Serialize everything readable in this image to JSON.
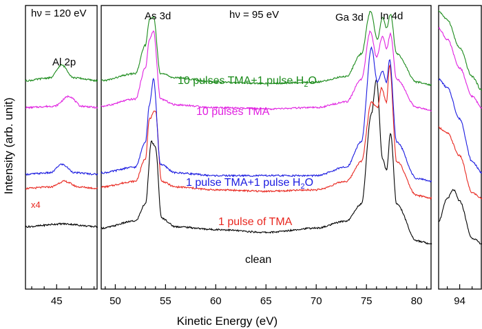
{
  "chart_data": {
    "type": "line",
    "xlabel": "Kinetic Energy (eV)",
    "ylabel": "Intensity (arb. unit)",
    "panels": [
      {
        "name": "left",
        "xlim": [
          42.5,
          48.3
        ],
        "ticks": [
          45
        ],
        "photon_energy": "hν = 120 eV"
      },
      {
        "name": "center",
        "xlim": [
          48.6,
          81.5
        ],
        "ticks": [
          50,
          55,
          60,
          65,
          70,
          75,
          80
        ],
        "photon_energy": "hν = 95 eV"
      },
      {
        "name": "right",
        "xlim": [
          92.3,
          95.8
        ],
        "ticks": [
          94
        ]
      }
    ],
    "peak_labels": [
      "Al 2p",
      "As 3d",
      "Ga 3d",
      "In 4d"
    ],
    "scale_note": "x4",
    "series": [
      {
        "name": "clean",
        "label": "clean",
        "color": "#000000",
        "left": {
          "x": [
            42.5,
            45.5,
            48.3
          ],
          "y": [
            0.22,
            0.23,
            0.22
          ]
        },
        "center": {
          "x": [
            48.6,
            52,
            53,
            53.6,
            54,
            54.6,
            56,
            60,
            65,
            70,
            73,
            74.5,
            75.5,
            76,
            76.6,
            77,
            77.4,
            78,
            80,
            81.5
          ],
          "y": [
            0.215,
            0.24,
            0.3,
            0.52,
            0.5,
            0.25,
            0.22,
            0.21,
            0.2,
            0.215,
            0.24,
            0.3,
            0.62,
            0.74,
            0.46,
            0.42,
            0.55,
            0.3,
            0.17,
            0.16
          ]
        },
        "right": {
          "x": [
            92.3,
            93,
            93.5,
            94,
            95,
            95.8
          ],
          "y": [
            0.24,
            0.32,
            0.35,
            0.31,
            0.18,
            0.16
          ]
        }
      },
      {
        "name": "1 pulse of TMA",
        "label": "1 pulse of TMA",
        "color": "#e8261e",
        "left": {
          "x": [
            42.5,
            44.5,
            45.6,
            46.8,
            48.3
          ],
          "y": [
            0.355,
            0.36,
            0.38,
            0.36,
            0.355
          ]
        },
        "center": {
          "x": [
            48.6,
            52,
            53,
            53.4,
            54,
            54.6,
            56,
            60,
            65,
            70,
            73,
            74.5,
            75.5,
            76.1,
            76.5,
            77,
            77.3,
            78,
            80,
            81.5
          ],
          "y": [
            0.36,
            0.38,
            0.46,
            0.6,
            0.63,
            0.38,
            0.36,
            0.35,
            0.345,
            0.35,
            0.38,
            0.45,
            0.66,
            0.64,
            0.71,
            0.66,
            0.79,
            0.45,
            0.33,
            0.32
          ]
        },
        "right": {
          "x": [
            92.3,
            93,
            94,
            95,
            95.8
          ],
          "y": [
            0.57,
            0.55,
            0.47,
            0.34,
            0.32
          ]
        }
      },
      {
        "name": "1 pulse TMA+1 pulse H2O",
        "label_main": "1 pulse TMA+1 pulse H",
        "label_sub": "2",
        "label_tail": "O",
        "color": "#1a1ae0",
        "left": {
          "x": [
            42.5,
            44.5,
            45.4,
            46.5,
            48.3
          ],
          "y": [
            0.405,
            0.41,
            0.44,
            0.41,
            0.405
          ]
        },
        "center": {
          "x": [
            48.6,
            52,
            53,
            53.4,
            53.8,
            54.5,
            56,
            60,
            65,
            70,
            73,
            74.5,
            75.5,
            76.1,
            76.6,
            77,
            77.3,
            78,
            80,
            81.5
          ],
          "y": [
            0.41,
            0.43,
            0.52,
            0.65,
            0.74,
            0.44,
            0.41,
            0.4,
            0.4,
            0.4,
            0.43,
            0.52,
            0.85,
            0.73,
            0.77,
            0.73,
            0.81,
            0.52,
            0.39,
            0.38
          ]
        },
        "right": {
          "x": [
            92.3,
            93,
            94,
            95,
            95.8
          ],
          "y": [
            0.74,
            0.71,
            0.6,
            0.45,
            0.41
          ]
        }
      },
      {
        "name": "10 pulses TMA",
        "label": "10 pulses TMA",
        "color": "#e020e0",
        "left": {
          "x": [
            42.5,
            44.8,
            46,
            47,
            48.3
          ],
          "y": [
            0.64,
            0.645,
            0.68,
            0.645,
            0.64
          ]
        },
        "center": {
          "x": [
            48.6,
            52,
            53,
            53.4,
            53.8,
            54.5,
            56,
            60,
            65,
            70,
            73,
            74.5,
            75.4,
            76,
            76.6,
            77,
            77.4,
            78,
            80,
            81.5
          ],
          "y": [
            0.645,
            0.67,
            0.78,
            0.88,
            0.91,
            0.67,
            0.65,
            0.64,
            0.635,
            0.64,
            0.66,
            0.74,
            0.91,
            0.82,
            0.89,
            0.85,
            0.9,
            0.74,
            0.64,
            0.63
          ]
        },
        "right": {
          "x": [
            92.3,
            93,
            94,
            95,
            95.8
          ],
          "y": [
            0.92,
            0.88,
            0.78,
            0.68,
            0.64
          ]
        }
      },
      {
        "name": "10 pulses TMA+1 pulse H2O",
        "label_main": "10 pulses TMA+1 pulse H",
        "label_sub": "2",
        "label_tail": "O",
        "color": "#1a8a1a",
        "left": {
          "x": [
            42.5,
            44.5,
            45.4,
            46.4,
            48.3
          ],
          "y": [
            0.735,
            0.745,
            0.79,
            0.745,
            0.735
          ]
        },
        "center": {
          "x": [
            48.6,
            52,
            53,
            53.4,
            53.8,
            54.5,
            56,
            60,
            65,
            70,
            73,
            74.5,
            75.4,
            76.1,
            76.6,
            77,
            77.4,
            78,
            80,
            81.5
          ],
          "y": [
            0.735,
            0.76,
            0.86,
            0.95,
            0.96,
            0.76,
            0.745,
            0.73,
            0.725,
            0.73,
            0.75,
            0.83,
            0.98,
            0.88,
            0.96,
            0.92,
            0.97,
            0.83,
            0.73,
            0.72
          ]
        },
        "right": {
          "x": [
            92.3,
            93,
            94,
            95,
            95.8
          ],
          "y": [
            0.98,
            0.95,
            0.85,
            0.75,
            0.7
          ]
        }
      }
    ]
  }
}
